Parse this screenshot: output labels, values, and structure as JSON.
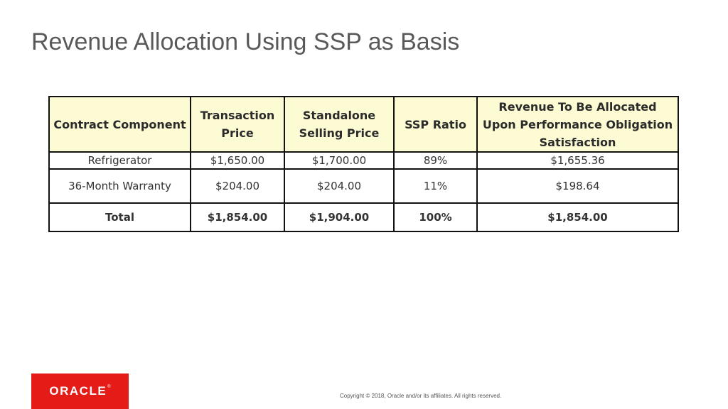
{
  "slide": {
    "title": "Revenue Allocation Using SSP as Basis"
  },
  "table": {
    "headers": [
      "Contract Component",
      "Transaction Price",
      "Standalone Selling Price",
      "SSP Ratio",
      "Revenue To Be Allocated Upon Performance Obligation Satisfaction"
    ],
    "rows": [
      [
        "Refrigerator",
        "$1,650.00",
        "$1,700.00",
        "89%",
        "$1,655.36"
      ],
      [
        "36-Month Warranty",
        "$204.00",
        "$204.00",
        "11%",
        "$198.64"
      ]
    ],
    "total": [
      "Total",
      "$1,854.00",
      "$1,904.00",
      "100%",
      "$1,854.00"
    ]
  },
  "footer": {
    "logo_text": "ORACLE",
    "logo_mark": "®",
    "copyright": "Copyright © 2018, Oracle and/or its affiliates. All rights reserved."
  },
  "colors": {
    "header_fill": "#fdfbd3",
    "logo_red": "#e41b17",
    "title_gray": "#595959"
  }
}
